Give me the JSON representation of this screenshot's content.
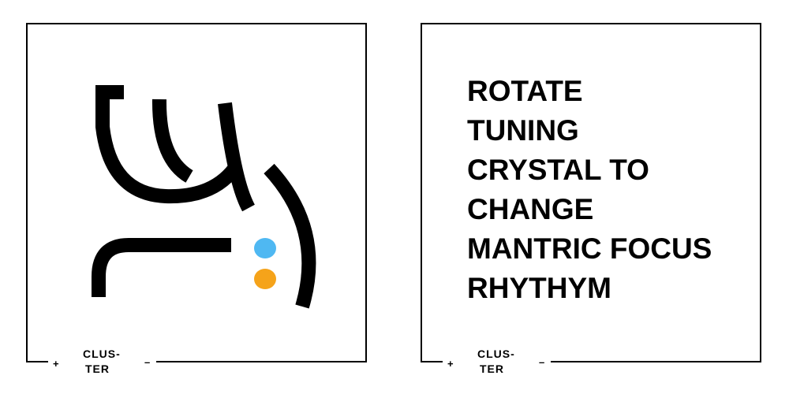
{
  "cards": {
    "left": {
      "brand_line1": "CLUS-",
      "brand_line2": "TER",
      "plus_label": "+",
      "minus_label": "–",
      "glyph": {
        "icon": "mantric-rune-glyph",
        "stroke_color": "#000000",
        "dot_colors": [
          "#4fb8f2",
          "#f5a31a"
        ]
      }
    },
    "right": {
      "instruction_text": "ROTATE\nTUNING\nCRYSTAL TO\nCHANGE\nMANTRIC FOCUS\nRHYTHYM",
      "brand_line1": "CLUS-",
      "brand_line2": "TER",
      "plus_label": "+",
      "minus_label": "–"
    }
  }
}
